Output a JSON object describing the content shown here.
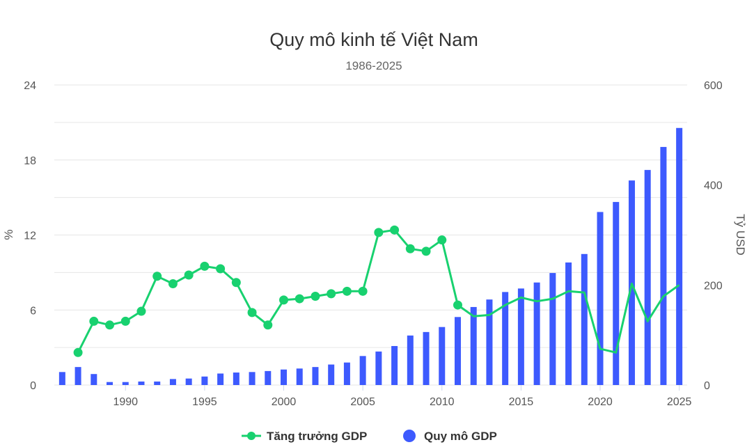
{
  "chart_data": {
    "type": "bar+line",
    "title": "Quy mô kinh tế Việt Nam",
    "subtitle": "1986-2025",
    "x": [
      1986,
      1987,
      1988,
      1989,
      1990,
      1991,
      1992,
      1993,
      1994,
      1995,
      1996,
      1997,
      1998,
      1999,
      2000,
      2001,
      2002,
      2003,
      2004,
      2005,
      2006,
      2007,
      2008,
      2009,
      2010,
      2011,
      2012,
      2013,
      2014,
      2015,
      2016,
      2017,
      2018,
      2019,
      2020,
      2021,
      2022,
      2023,
      2024,
      2025
    ],
    "x_ticks": [
      "1990",
      "1995",
      "2000",
      "2005",
      "2010",
      "2015",
      "2020",
      "2025"
    ],
    "x_tick_values": [
      1990,
      1995,
      2000,
      2005,
      2010,
      2015,
      2020,
      2025
    ],
    "y_left": {
      "label": "%",
      "range": [
        0,
        24
      ],
      "ticks": [
        "0",
        "6",
        "12",
        "18",
        "24"
      ]
    },
    "y_right": {
      "label": "Tỷ USD",
      "range": [
        0,
        600
      ],
      "ticks": [
        "0",
        "200",
        "400",
        "600"
      ]
    },
    "grid": true,
    "legend_position": "bottom-center",
    "series": [
      {
        "name": "Tăng trưởng GDP",
        "kind": "line",
        "axis": "left",
        "color": "#18d16f",
        "values": [
          null,
          2.6,
          5.1,
          4.8,
          5.1,
          5.9,
          8.7,
          8.1,
          8.8,
          9.5,
          9.3,
          8.2,
          5.8,
          4.8,
          6.8,
          6.9,
          7.1,
          7.3,
          7.5,
          7.5,
          12.2,
          12.4,
          10.9,
          10.7,
          11.6,
          6.4,
          5.5,
          5.6,
          6.4,
          7.0,
          6.7,
          6.9,
          7.5,
          7.4,
          2.9,
          2.6,
          8.1,
          5.1,
          7.1,
          8.0
        ],
        "markers_until": 2011
      },
      {
        "name": "Quy mô GDP",
        "kind": "bar",
        "axis": "right",
        "color": "#3d5afe",
        "values": [
          26,
          36,
          22,
          6,
          6,
          7,
          7,
          12,
          13,
          17,
          23,
          25,
          26,
          28,
          31,
          33,
          36,
          41,
          45,
          58,
          67,
          78,
          99,
          106,
          116,
          136,
          156,
          171,
          186,
          193,
          205,
          224,
          245,
          262,
          346,
          366,
          409,
          430,
          476,
          514
        ]
      }
    ]
  }
}
